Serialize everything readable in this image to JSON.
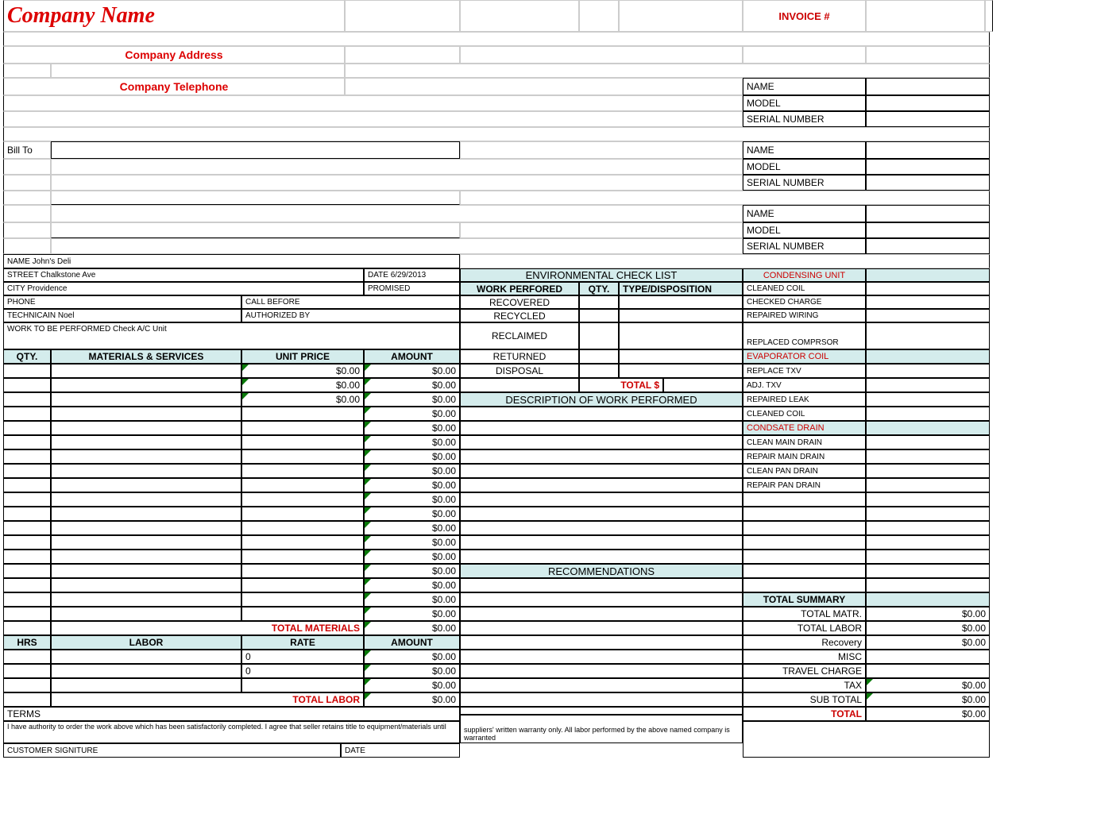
{
  "header": {
    "company_name": "Company Name",
    "company_address": "Company Address",
    "company_telephone": "Company Telephone",
    "invoice_label": "INVOICE #",
    "bill_to": "Bill To"
  },
  "equip": {
    "name": "NAME",
    "model": "MODEL",
    "serial": "SERIAL NUMBER"
  },
  "info": {
    "name": "NAME John's Deli",
    "street": "STREET  Chalkstone Ave",
    "city": "CITY  Providence",
    "phone": "PHONE",
    "tech": "TECHNICAIN  Noel",
    "work": "WORK TO BE PERFORMED  Check A/C Unit",
    "date": "DATE  6/29/2013",
    "promised": "PROMISED",
    "call_before": "CALL BEFORE",
    "authorized": "AUTHORIZED BY"
  },
  "mat_hdr": {
    "qty": "QTY.",
    "ms": "MATERIALS & SERVICES",
    "up": "UNIT PRICE",
    "amt": "AMOUNT"
  },
  "mat": {
    "unit_prices": [
      "$0.00",
      "$0.00",
      "$0.00"
    ],
    "amounts": [
      "$0.00",
      "$0.00",
      "$0.00",
      "$0.00",
      "$0.00",
      "$0.00",
      "$0.00",
      "$0.00",
      "$0.00",
      "$0.00",
      "$0.00",
      "$0.00",
      "$0.00",
      "$0.00",
      "$0.00",
      "$0.00",
      "$0.00",
      "$0.00"
    ],
    "total_label": "TOTAL MATERIALS",
    "total": "$0.00"
  },
  "labor_hdr": {
    "hrs": "HRS",
    "labor": "LABOR",
    "rate": "RATE",
    "amt": "AMOUNT"
  },
  "labor": {
    "rates": [
      "0",
      "0"
    ],
    "amounts": [
      "$0.00",
      "$0.00",
      "$0.00"
    ],
    "total_label": "TOTAL LABOR",
    "total": "$0.00"
  },
  "env": {
    "title": "ENVIRONMENTAL CHECK LIST",
    "wp": "WORK PERFORED",
    "qty": "QTY.",
    "td": "TYPE/DISPOSITION",
    "rows": [
      "RECOVERED",
      "RECYCLED",
      "RECLAIMED",
      "RETURNED",
      "DISPOSAL"
    ],
    "total": "TOTAL $"
  },
  "desc": {
    "title": "DESCRIPTION OF WORK PERFORMED"
  },
  "rec": {
    "title": "RECOMMENDATIONS"
  },
  "check": {
    "cu": "CONDENSING UNIT",
    "cu_items": [
      "CLEANED COIL",
      "CHECKED CHARGE",
      "REPAIRED WIRING",
      "REPLACED COMPRSOR"
    ],
    "ec": "EVAPORATOR COIL",
    "ec_items": [
      "REPLACE TXV",
      "ADJ. TXV",
      "REPAIRED LEAK",
      "CLEANED COIL"
    ],
    "cd": "CONDSATE DRAIN",
    "cd_items": [
      "CLEAN MAIN DRAIN",
      "REPAIR MAIN DRAIN",
      "CLEAN PAN DRAIN",
      "REPAIR PAN DRAIN"
    ]
  },
  "summary": {
    "title": "TOTAL SUMMARY",
    "rows": [
      {
        "l": "TOTAL MATR.",
        "v": "$0.00"
      },
      {
        "l": "TOTAL LABOR",
        "v": "$0.00"
      },
      {
        "l": "Recovery",
        "v": "$0.00"
      },
      {
        "l": "MISC",
        "v": ""
      },
      {
        "l": "TRAVEL CHARGE",
        "v": ""
      },
      {
        "l": "TAX",
        "v": "$0.00"
      },
      {
        "l": "SUB TOTAL",
        "v": "$0.00"
      }
    ],
    "total_l": "TOTAL",
    "total_v": "$0.00"
  },
  "footer": {
    "terms": "TERMS",
    "auth": "I have authority to order the work above which has been satisfactorily completed. I agree that seller retains title to equipment/materials until",
    "warranty": "suppliers' written warranty only. All labor performed by the above named company is warranted",
    "sig": "CUSTOMER SIGNITURE",
    "date": "DATE"
  }
}
